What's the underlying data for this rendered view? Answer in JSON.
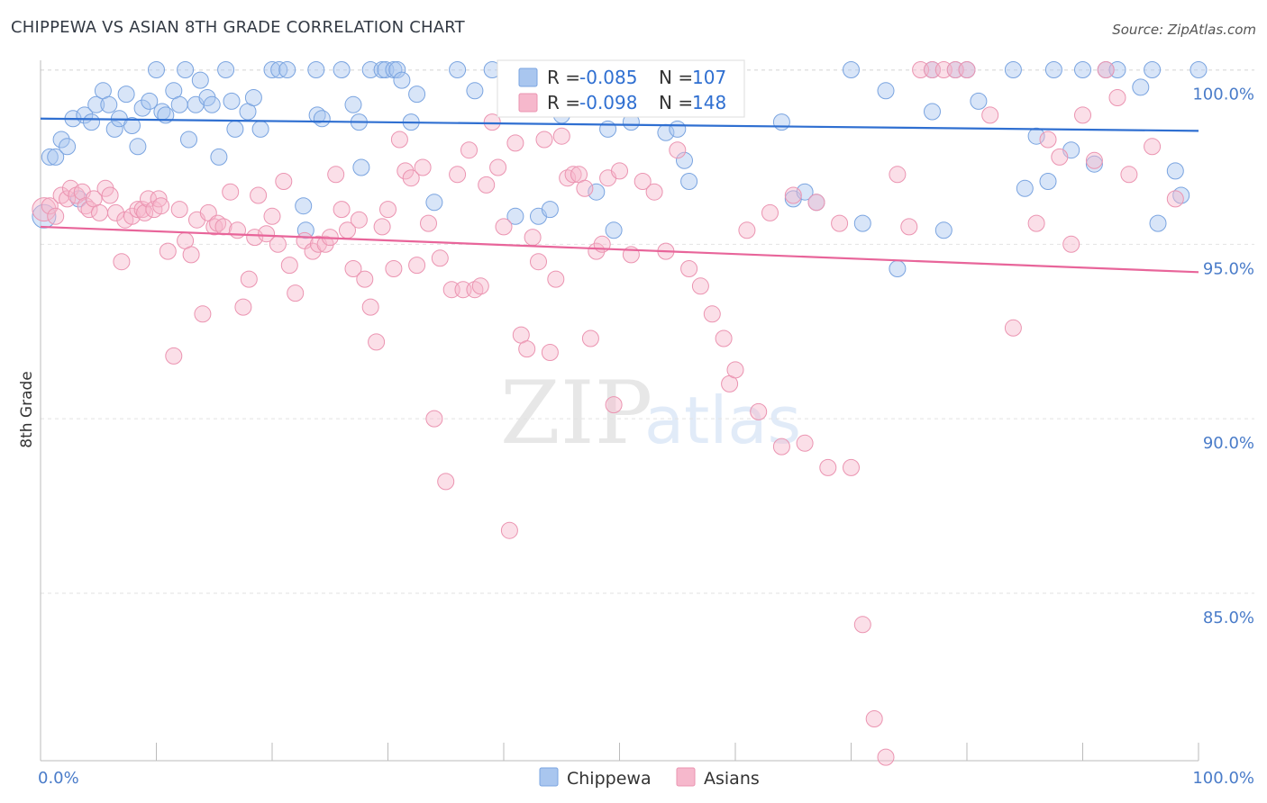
{
  "title": "CHIPPEWA VS ASIAN 8TH GRADE CORRELATION CHART",
  "source": "Source: ZipAtlas.com",
  "watermark": {
    "zip": "ZIP",
    "atlas": "atlas"
  },
  "colors": {
    "chippewa_fill": "#a9c6ef",
    "chippewa_stroke": "#7aa4e0",
    "chippewa_line": "#2f6fd1",
    "asians_fill": "#f6b8cc",
    "asians_stroke": "#eb94b1",
    "asians_line": "#e8659a",
    "tick_text": "#4a7cc9",
    "grid": "#e2e2e2"
  },
  "legend": {
    "rows": [
      {
        "r_label": "R =",
        "r_value": "-0.085",
        "n_label": "N =",
        "n_value": "107"
      },
      {
        "r_label": "R =",
        "r_value": "-0.098",
        "n_label": "N =",
        "n_value": "148"
      }
    ]
  },
  "chart_data": {
    "type": "scatter",
    "title": "CHIPPEWA VS ASIAN 8TH GRADE CORRELATION CHART",
    "xlabel": "",
    "ylabel": "8th Grade",
    "xlim": [
      0,
      100
    ],
    "ylim": [
      80.2,
      100.4
    ],
    "x_tick_labels": [
      "0.0%",
      "100.0%"
    ],
    "y_ticks": [
      85,
      90,
      95,
      100
    ],
    "y_tick_labels": [
      "85.0%",
      "90.0%",
      "95.0%",
      "100.0%"
    ],
    "grid": "horizontal dashed",
    "legend_position": "top-center",
    "series": [
      {
        "name": "Chippewa",
        "r": -0.085,
        "n": 107,
        "trend": {
          "x": [
            0,
            100
          ],
          "y": [
            98.6,
            98.25
          ]
        },
        "points": [
          [
            0.3,
            95.8
          ],
          [
            0.8,
            97.5
          ],
          [
            1.3,
            97.5
          ],
          [
            1.8,
            98
          ],
          [
            2.3,
            97.8
          ],
          [
            2.8,
            98.6
          ],
          [
            3.3,
            96.3
          ],
          [
            3.8,
            98.7
          ],
          [
            4.4,
            98.5
          ],
          [
            4.8,
            99
          ],
          [
            5.4,
            99.4
          ],
          [
            5.9,
            99
          ],
          [
            6.4,
            98.3
          ],
          [
            6.8,
            98.6
          ],
          [
            7.4,
            99.3
          ],
          [
            7.9,
            98.4
          ],
          [
            8.4,
            97.8
          ],
          [
            8.8,
            98.9
          ],
          [
            9.4,
            99.1
          ],
          [
            10,
            100
          ],
          [
            10.5,
            98.8
          ],
          [
            10.8,
            98.7
          ],
          [
            11.5,
            99.4
          ],
          [
            12,
            99
          ],
          [
            12.5,
            100
          ],
          [
            12.8,
            98
          ],
          [
            13.4,
            99
          ],
          [
            13.8,
            99.7
          ],
          [
            14.4,
            99.2
          ],
          [
            14.8,
            99
          ],
          [
            15.4,
            97.5
          ],
          [
            16,
            100
          ],
          [
            16.5,
            99.1
          ],
          [
            16.8,
            98.3
          ],
          [
            17.9,
            98.8
          ],
          [
            18.4,
            99.2
          ],
          [
            19,
            98.3
          ],
          [
            20,
            100
          ],
          [
            20.6,
            100
          ],
          [
            21.3,
            100
          ],
          [
            22.7,
            96.1
          ],
          [
            22.9,
            95.4
          ],
          [
            23.8,
            100
          ],
          [
            23.9,
            98.7
          ],
          [
            24.3,
            98.6
          ],
          [
            26,
            100
          ],
          [
            27,
            99
          ],
          [
            27.5,
            98.5
          ],
          [
            27.7,
            97.2
          ],
          [
            28.5,
            100
          ],
          [
            29.5,
            100
          ],
          [
            29.8,
            100
          ],
          [
            30.5,
            100
          ],
          [
            30.8,
            100
          ],
          [
            31.2,
            99.7
          ],
          [
            32,
            98.5
          ],
          [
            32.5,
            99.3
          ],
          [
            34,
            96.2
          ],
          [
            36,
            100
          ],
          [
            37.5,
            99.4
          ],
          [
            39,
            100
          ],
          [
            41,
            95.8
          ],
          [
            42,
            100
          ],
          [
            43,
            95.8
          ],
          [
            44,
            96
          ],
          [
            45,
            98.7
          ],
          [
            46,
            100
          ],
          [
            48,
            96.5
          ],
          [
            49,
            98.3
          ],
          [
            49.5,
            95.4
          ],
          [
            51,
            98.5
          ],
          [
            52,
            100
          ],
          [
            54,
            98.2
          ],
          [
            55,
            98.3
          ],
          [
            55.6,
            97.4
          ],
          [
            56,
            96.8
          ],
          [
            58,
            99.3
          ],
          [
            60,
            100
          ],
          [
            64,
            98.5
          ],
          [
            65,
            96.3
          ],
          [
            66,
            96.5
          ],
          [
            67,
            96.2
          ],
          [
            70,
            100
          ],
          [
            71,
            95.6
          ],
          [
            73,
            99.4
          ],
          [
            74,
            94.3
          ],
          [
            77,
            100
          ],
          [
            77,
            98.8
          ],
          [
            78,
            95.4
          ],
          [
            79,
            100
          ],
          [
            80,
            100
          ],
          [
            81,
            99.1
          ],
          [
            84,
            100
          ],
          [
            85,
            96.6
          ],
          [
            86,
            98.1
          ],
          [
            87,
            96.8
          ],
          [
            87.5,
            100
          ],
          [
            89,
            97.7
          ],
          [
            90,
            100
          ],
          [
            91,
            97.3
          ],
          [
            92,
            100
          ],
          [
            93,
            100
          ],
          [
            95,
            99.5
          ],
          [
            96,
            100
          ],
          [
            96.5,
            95.6
          ],
          [
            98,
            97.1
          ],
          [
            98.5,
            96.4
          ],
          [
            100,
            100
          ]
        ]
      },
      {
        "name": "Asians",
        "r": -0.098,
        "n": 148,
        "trend": {
          "x": [
            0,
            100
          ],
          "y": [
            95.5,
            94.2
          ]
        },
        "points": [
          [
            0.3,
            96
          ],
          [
            0.8,
            96.1
          ],
          [
            1.3,
            95.8
          ],
          [
            1.8,
            96.4
          ],
          [
            2.3,
            96.3
          ],
          [
            2.6,
            96.6
          ],
          [
            3.1,
            96.4
          ],
          [
            3.6,
            96.5
          ],
          [
            3.9,
            96.1
          ],
          [
            4.2,
            96
          ],
          [
            4.6,
            96.3
          ],
          [
            5.1,
            95.9
          ],
          [
            5.6,
            96.6
          ],
          [
            6,
            96.4
          ],
          [
            6.5,
            95.9
          ],
          [
            7,
            94.5
          ],
          [
            7.3,
            95.7
          ],
          [
            7.9,
            95.8
          ],
          [
            8.4,
            96
          ],
          [
            8.8,
            96
          ],
          [
            9,
            95.9
          ],
          [
            9.3,
            96.3
          ],
          [
            9.8,
            96
          ],
          [
            10.2,
            96.3
          ],
          [
            10.4,
            96.1
          ],
          [
            11,
            94.8
          ],
          [
            11.5,
            91.8
          ],
          [
            12,
            96
          ],
          [
            12.5,
            95.1
          ],
          [
            13,
            94.7
          ],
          [
            13.5,
            95.7
          ],
          [
            14,
            93
          ],
          [
            14.5,
            95.9
          ],
          [
            15,
            95.5
          ],
          [
            15.3,
            95.6
          ],
          [
            15.8,
            95.5
          ],
          [
            16.4,
            96.5
          ],
          [
            17,
            95.4
          ],
          [
            17.5,
            93.2
          ],
          [
            18,
            94
          ],
          [
            18.5,
            95.2
          ],
          [
            18.8,
            96.4
          ],
          [
            19.5,
            95.3
          ],
          [
            20,
            95.8
          ],
          [
            20.5,
            95
          ],
          [
            21,
            96.8
          ],
          [
            21.5,
            94.4
          ],
          [
            22,
            93.6
          ],
          [
            22.8,
            95.1
          ],
          [
            23.5,
            94.8
          ],
          [
            24,
            95
          ],
          [
            24.6,
            95
          ],
          [
            25,
            95.2
          ],
          [
            25.5,
            97
          ],
          [
            26,
            96
          ],
          [
            26.5,
            95.4
          ],
          [
            27,
            94.3
          ],
          [
            27.5,
            95.7
          ],
          [
            28,
            94
          ],
          [
            28.5,
            93.2
          ],
          [
            29,
            92.2
          ],
          [
            29.5,
            95.5
          ],
          [
            30,
            96
          ],
          [
            30.5,
            94.3
          ],
          [
            31,
            98
          ],
          [
            31.5,
            97.1
          ],
          [
            32,
            96.9
          ],
          [
            32.5,
            94.4
          ],
          [
            33,
            97.2
          ],
          [
            33.5,
            95.6
          ],
          [
            34,
            90
          ],
          [
            34.5,
            94.6
          ],
          [
            35,
            88.2
          ],
          [
            35.5,
            93.7
          ],
          [
            36,
            97
          ],
          [
            36.5,
            93.7
          ],
          [
            37,
            97.7
          ],
          [
            37.5,
            93.7
          ],
          [
            38,
            93.8
          ],
          [
            38.5,
            96.7
          ],
          [
            39,
            98.5
          ],
          [
            39.5,
            97.2
          ],
          [
            40,
            95.5
          ],
          [
            40.5,
            86.8
          ],
          [
            41,
            97.9
          ],
          [
            41.5,
            92.4
          ],
          [
            42,
            92
          ],
          [
            42.5,
            95.2
          ],
          [
            43,
            94.5
          ],
          [
            43.5,
            98
          ],
          [
            44,
            91.9
          ],
          [
            44.5,
            94
          ],
          [
            45,
            98.1
          ],
          [
            45.5,
            96.9
          ],
          [
            46,
            97
          ],
          [
            46.5,
            97
          ],
          [
            47,
            96.6
          ],
          [
            47.5,
            92.3
          ],
          [
            48,
            94.8
          ],
          [
            48.5,
            95
          ],
          [
            49,
            96.9
          ],
          [
            49.5,
            90.4
          ],
          [
            50,
            97.1
          ],
          [
            51,
            94.7
          ],
          [
            52,
            96.8
          ],
          [
            53,
            96.5
          ],
          [
            54,
            94.8
          ],
          [
            55,
            97.7
          ],
          [
            56,
            94.3
          ],
          [
            57,
            93.8
          ],
          [
            58,
            93
          ],
          [
            59,
            92.3
          ],
          [
            59.5,
            91
          ],
          [
            60,
            91.4
          ],
          [
            61,
            95.4
          ],
          [
            62,
            90.2
          ],
          [
            63,
            95.9
          ],
          [
            64,
            89.2
          ],
          [
            65,
            96.4
          ],
          [
            66,
            89.3
          ],
          [
            67,
            96.2
          ],
          [
            68,
            88.6
          ],
          [
            69,
            95.6
          ],
          [
            70,
            88.6
          ],
          [
            71,
            84.1
          ],
          [
            72,
            81.4
          ],
          [
            73,
            80.3
          ],
          [
            74,
            97
          ],
          [
            75,
            95.5
          ],
          [
            76,
            100
          ],
          [
            77,
            100
          ],
          [
            78,
            100
          ],
          [
            79,
            100
          ],
          [
            80,
            100
          ],
          [
            82,
            98.7
          ],
          [
            84,
            92.6
          ],
          [
            86,
            95.6
          ],
          [
            87,
            98
          ],
          [
            88,
            97.5
          ],
          [
            89,
            95
          ],
          [
            90,
            98.7
          ],
          [
            91,
            97.4
          ],
          [
            92,
            100
          ],
          [
            93,
            99.2
          ],
          [
            94,
            97
          ],
          [
            96,
            97.8
          ],
          [
            98,
            96.3
          ]
        ]
      }
    ]
  }
}
